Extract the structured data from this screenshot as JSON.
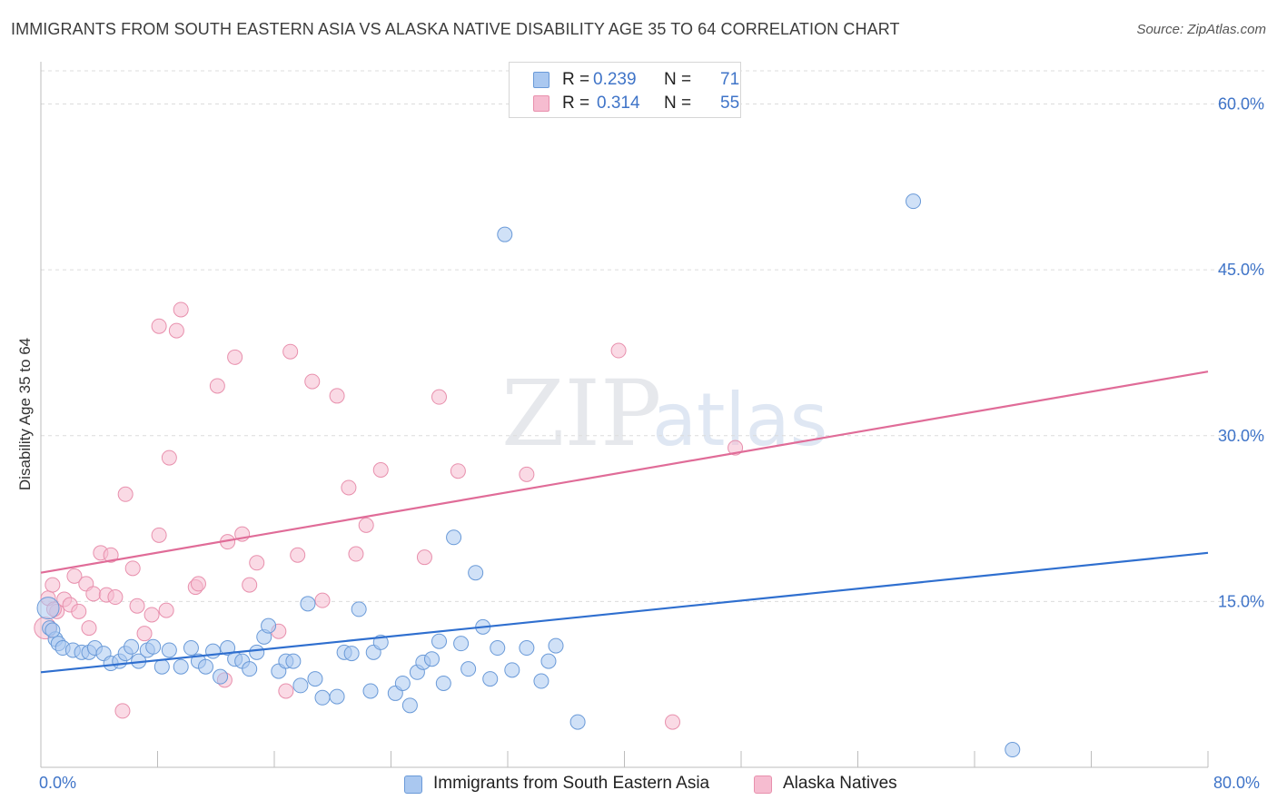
{
  "header": {
    "title": "IMMIGRANTS FROM SOUTH EASTERN ASIA VS ALASKA NATIVE DISABILITY AGE 35 TO 64 CORRELATION CHART",
    "source": "Source: ZipAtlas.com"
  },
  "legend": {
    "r_label": "R =",
    "n_label": "N =",
    "series": [
      {
        "name": "Immigrants from South Eastern Asia",
        "r": "0.239",
        "n": "71"
      },
      {
        "name": "Alaska Natives",
        "r": "0.314",
        "n": "55"
      }
    ]
  },
  "colors": {
    "blue_fill": "#aac8f0",
    "blue_stroke": "#6a9ad8",
    "blue_line": "#2f6fcf",
    "pink_fill": "#f6bcd0",
    "pink_stroke": "#e890ad",
    "pink_line": "#e06c98",
    "accent_text": "#3f74c8"
  },
  "watermark": {
    "zip": "ZIP",
    "atlas": "atlas"
  },
  "chart_data": {
    "type": "scatter",
    "title": "IMMIGRANTS FROM SOUTH EASTERN ASIA VS ALASKA NATIVE DISABILITY AGE 35 TO 64 CORRELATION CHART",
    "xlabel": "",
    "ylabel": "Disability Age 35 to 64",
    "xlim": [
      0,
      80
    ],
    "ylim": [
      0,
      63
    ],
    "x_tick_labels": {
      "min": "0.0%",
      "max": "80.0%"
    },
    "y_ticks": [
      15,
      30,
      45,
      60
    ],
    "y_tick_labels": [
      "15.0%",
      "30.0%",
      "45.0%",
      "60.0%"
    ],
    "grid": true,
    "legend_position": "top-center",
    "series": [
      {
        "name": "Immigrants from South Eastern Asia",
        "color": "#aac8f0",
        "trend": {
          "x": [
            0,
            80
          ],
          "y": [
            8.6,
            19.4
          ]
        },
        "points": [
          [
            0.5,
            14.4
          ],
          [
            0.6,
            12.6
          ],
          [
            1.0,
            11.6
          ],
          [
            1.2,
            11.2
          ],
          [
            1.5,
            10.8
          ],
          [
            2.2,
            10.6
          ],
          [
            2.8,
            10.4
          ],
          [
            3.3,
            10.4
          ],
          [
            3.7,
            10.8
          ],
          [
            4.3,
            10.3
          ],
          [
            4.8,
            9.4
          ],
          [
            5.4,
            9.6
          ],
          [
            5.8,
            10.3
          ],
          [
            6.2,
            10.9
          ],
          [
            6.7,
            9.6
          ],
          [
            7.3,
            10.6
          ],
          [
            7.7,
            10.9
          ],
          [
            8.3,
            9.1
          ],
          [
            8.8,
            10.6
          ],
          [
            9.6,
            9.1
          ],
          [
            10.3,
            10.8
          ],
          [
            10.8,
            9.6
          ],
          [
            11.3,
            9.1
          ],
          [
            11.8,
            10.5
          ],
          [
            12.3,
            8.2
          ],
          [
            12.8,
            10.8
          ],
          [
            13.3,
            9.8
          ],
          [
            13.8,
            9.6
          ],
          [
            14.3,
            8.9
          ],
          [
            14.8,
            10.4
          ],
          [
            15.3,
            11.8
          ],
          [
            15.6,
            12.8
          ],
          [
            16.3,
            8.7
          ],
          [
            16.8,
            9.6
          ],
          [
            17.3,
            9.6
          ],
          [
            17.8,
            7.4
          ],
          [
            18.3,
            14.8
          ],
          [
            18.8,
            8.0
          ],
          [
            19.3,
            6.3
          ],
          [
            20.3,
            6.4
          ],
          [
            20.8,
            10.4
          ],
          [
            21.3,
            10.3
          ],
          [
            21.8,
            14.3
          ],
          [
            22.8,
            10.4
          ],
          [
            23.3,
            11.3
          ],
          [
            22.6,
            6.9
          ],
          [
            24.3,
            6.7
          ],
          [
            24.8,
            7.6
          ],
          [
            25.3,
            5.6
          ],
          [
            25.8,
            8.6
          ],
          [
            26.2,
            9.5
          ],
          [
            26.8,
            9.8
          ],
          [
            27.3,
            11.4
          ],
          [
            27.6,
            7.6
          ],
          [
            28.3,
            20.8
          ],
          [
            28.8,
            11.2
          ],
          [
            29.3,
            8.9
          ],
          [
            29.8,
            17.6
          ],
          [
            30.3,
            12.7
          ],
          [
            30.8,
            8.0
          ],
          [
            31.3,
            10.8
          ],
          [
            31.8,
            48.2
          ],
          [
            32.3,
            8.8
          ],
          [
            33.3,
            10.8
          ],
          [
            34.3,
            7.8
          ],
          [
            34.8,
            9.6
          ],
          [
            35.3,
            11.0
          ],
          [
            36.8,
            4.1
          ],
          [
            59.8,
            51.2
          ],
          [
            66.6,
            1.6
          ],
          [
            0.8,
            12.4
          ]
        ]
      },
      {
        "name": "Alaska Natives",
        "color": "#f6bcd0",
        "trend": {
          "x": [
            0,
            80
          ],
          "y": [
            17.6,
            35.8
          ]
        },
        "points": [
          [
            0.3,
            12.6
          ],
          [
            0.5,
            15.3
          ],
          [
            0.8,
            16.5
          ],
          [
            1.1,
            14.1
          ],
          [
            1.6,
            15.2
          ],
          [
            2.0,
            14.7
          ],
          [
            2.3,
            17.3
          ],
          [
            2.6,
            14.1
          ],
          [
            3.1,
            16.6
          ],
          [
            3.3,
            12.6
          ],
          [
            3.6,
            15.7
          ],
          [
            4.1,
            19.4
          ],
          [
            4.5,
            15.6
          ],
          [
            4.8,
            19.2
          ],
          [
            5.1,
            15.4
          ],
          [
            5.6,
            5.1
          ],
          [
            5.8,
            24.7
          ],
          [
            6.3,
            18.0
          ],
          [
            6.6,
            14.6
          ],
          [
            7.1,
            12.1
          ],
          [
            7.6,
            13.8
          ],
          [
            8.1,
            21.0
          ],
          [
            8.1,
            39.9
          ],
          [
            8.6,
            14.2
          ],
          [
            8.8,
            28.0
          ],
          [
            9.3,
            39.5
          ],
          [
            9.6,
            41.4
          ],
          [
            10.6,
            16.3
          ],
          [
            10.8,
            16.6
          ],
          [
            12.1,
            34.5
          ],
          [
            12.8,
            20.4
          ],
          [
            13.3,
            37.1
          ],
          [
            13.8,
            21.1
          ],
          [
            14.3,
            16.5
          ],
          [
            14.8,
            18.5
          ],
          [
            16.3,
            12.3
          ],
          [
            16.8,
            6.9
          ],
          [
            17.1,
            37.6
          ],
          [
            17.6,
            19.2
          ],
          [
            18.6,
            34.9
          ],
          [
            19.3,
            15.1
          ],
          [
            20.3,
            33.6
          ],
          [
            21.1,
            25.3
          ],
          [
            21.6,
            19.3
          ],
          [
            22.3,
            21.9
          ],
          [
            23.3,
            26.9
          ],
          [
            26.3,
            19.0
          ],
          [
            27.3,
            33.5
          ],
          [
            28.6,
            26.8
          ],
          [
            33.3,
            26.5
          ],
          [
            39.6,
            37.7
          ],
          [
            43.3,
            4.1
          ],
          [
            47.6,
            28.9
          ],
          [
            0.9,
            14.3
          ],
          [
            12.6,
            7.9
          ]
        ]
      }
    ]
  }
}
